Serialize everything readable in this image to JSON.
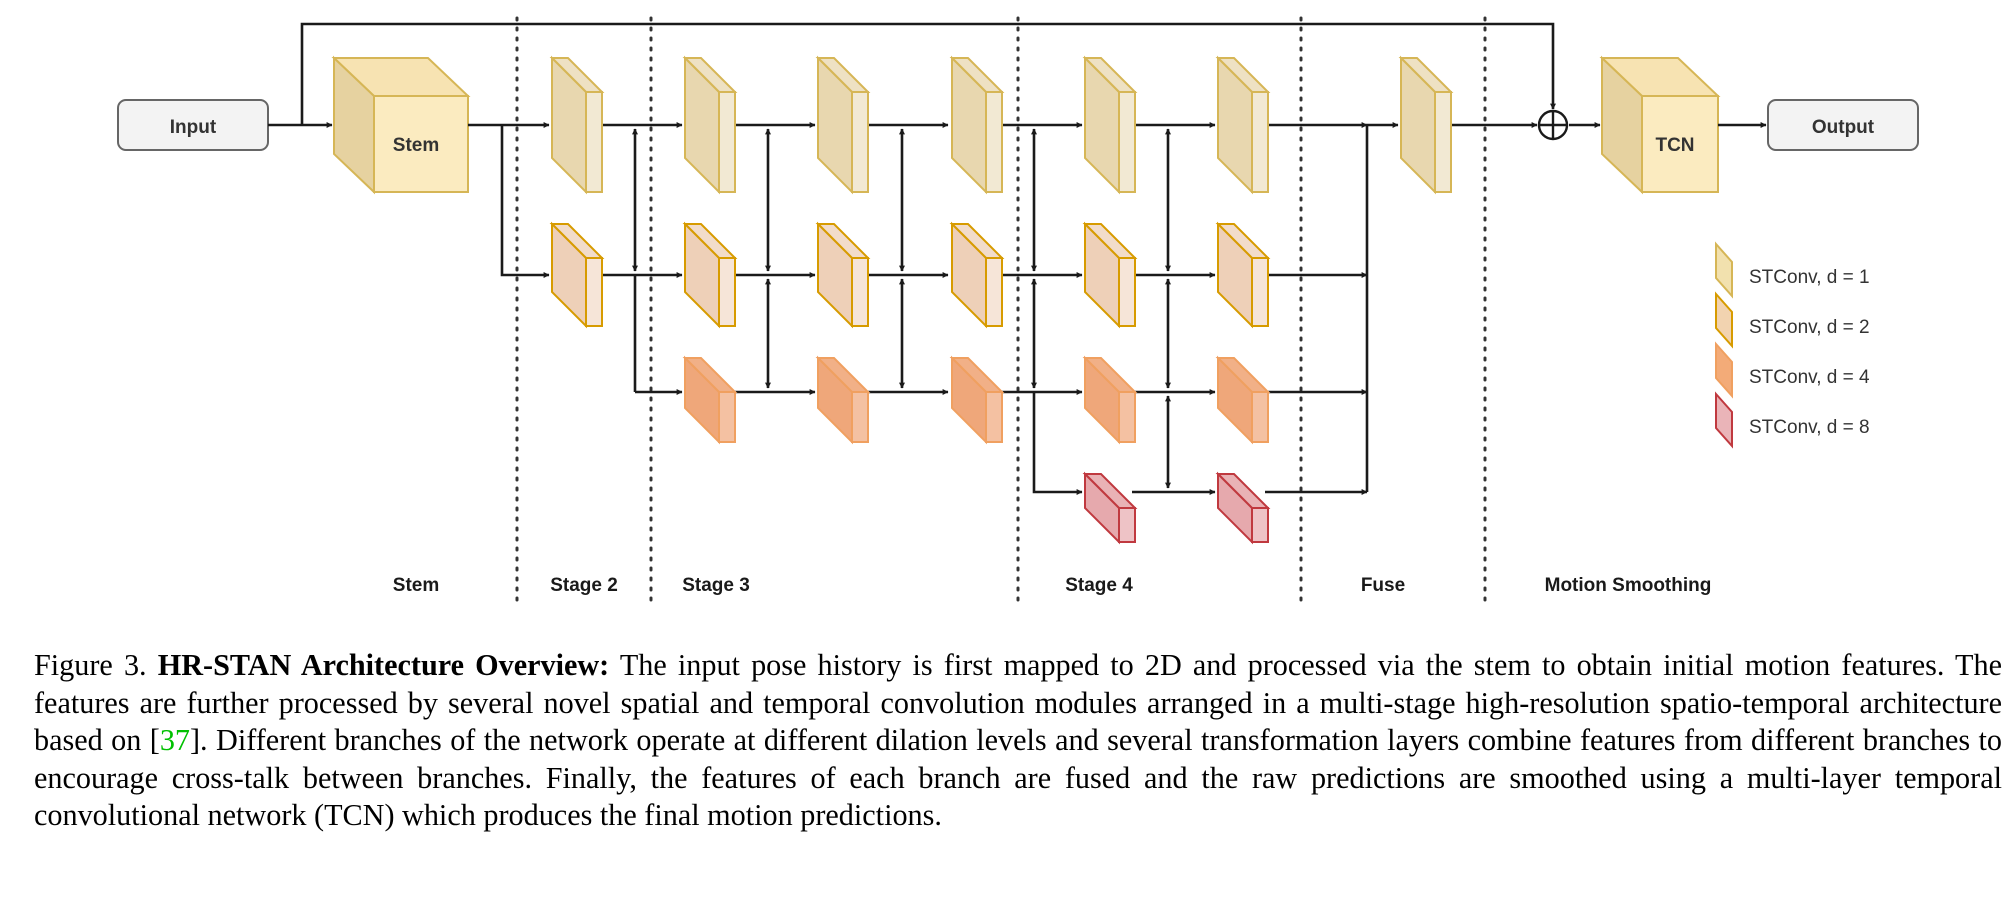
{
  "diagram": {
    "input_label": "Input",
    "output_label": "Output",
    "stem_label": "Stem",
    "tcn_label": "TCN",
    "stages": [
      "Stem",
      "Stage 2",
      "Stage 3",
      "Stage 4",
      "Fuse",
      "Motion Smoothing"
    ],
    "legend": [
      {
        "label": "STConv, d = 1",
        "color": "#f2e1ae"
      },
      {
        "label": "STConv, d = 2",
        "color": "#f2d3b0"
      },
      {
        "label": "STConv, d = 4",
        "color": "#f3ab78"
      },
      {
        "label": "STConv, d = 8",
        "color": "#eab4b8"
      }
    ],
    "colors": {
      "d1_fill": "#e8d7af",
      "d1_edge": "#d6b656",
      "d2_fill": "#eed0b8",
      "d2_edge": "#d79b00",
      "d4_fill": "#efa77a",
      "d4_edge": "#f0a060",
      "d8_fill": "#e6a9ad",
      "d8_edge": "#c0393f",
      "box_fill": "#f3f3f3",
      "box_edge": "#666666"
    }
  },
  "caption": {
    "figure_number": "Figure 3.",
    "title": "HR-STAN Architecture Overview:",
    "text_before_citation": " The input pose history is first mapped to 2D and processed via the stem to obtain initial motion features. The features are further processed by several novel spatial and temporal convolution modules arranged in a multi-stage high-resolution spatio-temporal architecture based on [",
    "citation": "37",
    "text_after_citation": "]. Different branches of the network operate at different dilation levels and several transformation layers combine features from different branches to encourage cross-talk between branches. Finally, the features of each branch are fused and the raw predictions are smoothed using a multi-layer temporal convolutional network (TCN) which produces the final motion predictions."
  }
}
